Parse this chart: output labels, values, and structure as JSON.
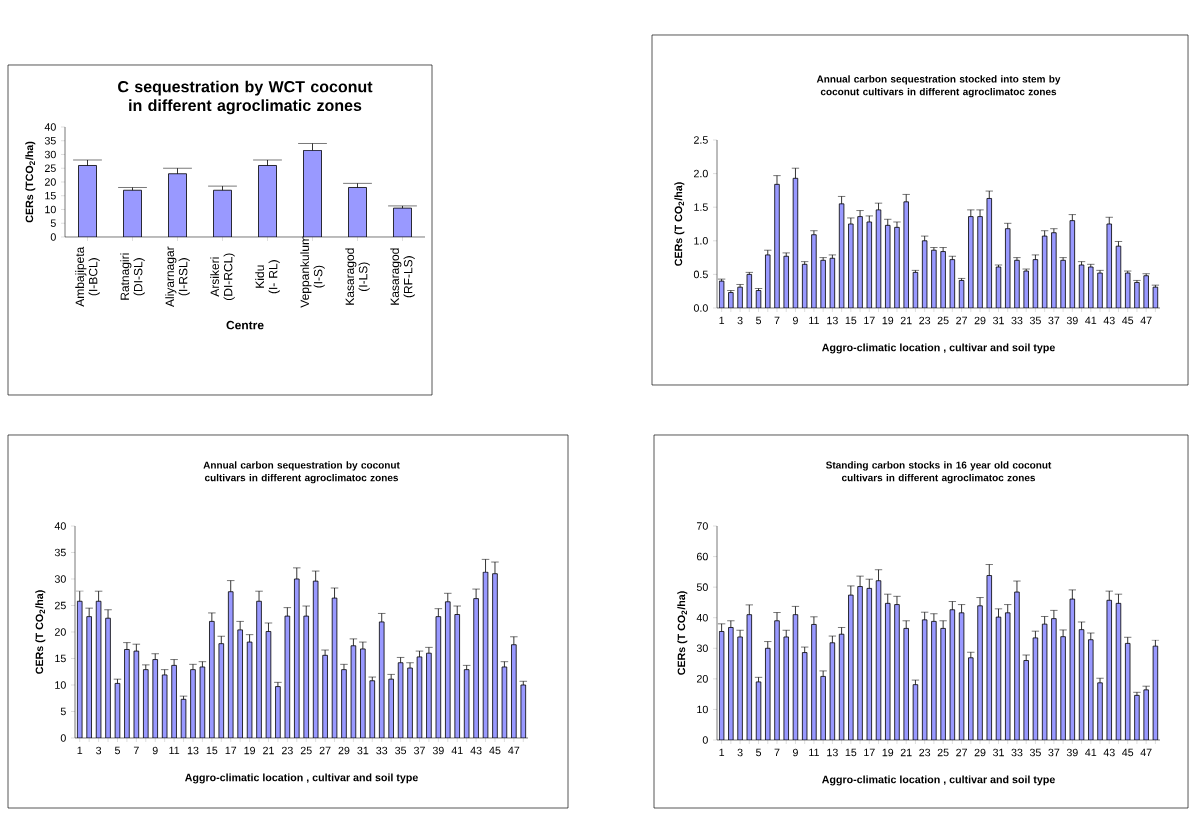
{
  "chart_data": [
    {
      "type": "bar",
      "title": "C sequestration by WCT coconut in different agroclimatic zones",
      "xlabel": "Centre",
      "ylabel": "CERs (TCO$_{2}$/ha)",
      "categories": [
        "Ambajipeta (I-BCL)",
        "Ratnagiri (DI-SL)",
        "Aliyarnagar (I-RSL)",
        "Arsikeri (DI-RCL)",
        "Kidu (I- RL)",
        "Veppankulum (I-S)",
        "Kasaragod (I-LS)",
        "Kasaragod (RF-LS)"
      ],
      "values": [
        26,
        17,
        23,
        17,
        26,
        31.5,
        18,
        10.5
      ],
      "errors": [
        2,
        1,
        2,
        1.5,
        2,
        2.5,
        1.5,
        0.8
      ],
      "color": "#9999ff",
      "ylim": [
        0,
        40
      ],
      "yticks": [
        0,
        5,
        10,
        15,
        20,
        25,
        30,
        35,
        40
      ]
    },
    {
      "type": "bar",
      "title": "Annual carbon sequestration stocked into stem by coconut cultivars in different agroclimatoc zones",
      "xlabel": "Aggro-climatic location , cultivar and soil type",
      "ylabel": "CERs (T CO$_{2}$/ha)",
      "categories": [
        "1",
        null,
        "3",
        null,
        "5",
        null,
        "7",
        null,
        "9",
        null,
        "11",
        null,
        "13",
        null,
        "15",
        null,
        "17",
        null,
        "19",
        null,
        "21",
        null,
        "23",
        null,
        "25",
        null,
        "27",
        null,
        "29",
        null,
        "31",
        null,
        "33",
        null,
        "35",
        null,
        "37",
        null,
        "39",
        null,
        "41",
        null,
        "43",
        null,
        "45",
        null,
        "47",
        null
      ],
      "values": [
        0.4,
        0.23,
        0.31,
        0.5,
        0.26,
        0.79,
        1.84,
        0.77,
        1.93,
        0.65,
        1.09,
        0.71,
        0.74,
        1.55,
        1.25,
        1.36,
        1.28,
        1.46,
        1.23,
        1.2,
        1.58,
        0.53,
        1.0,
        0.86,
        0.84,
        0.72,
        0.41,
        1.36,
        1.36,
        1.63,
        0.61,
        1.18,
        0.71,
        0.55,
        0.72,
        1.07,
        1.12,
        0.71,
        1.3,
        0.64,
        0.61,
        0.52,
        1.25,
        0.92,
        0.52,
        0.38,
        0.48,
        0.31
      ],
      "errors": [
        0.03,
        0.03,
        0.04,
        0.03,
        0.03,
        0.07,
        0.13,
        0.05,
        0.15,
        0.04,
        0.06,
        0.04,
        0.05,
        0.11,
        0.09,
        0.09,
        0.09,
        0.1,
        0.09,
        0.08,
        0.11,
        0.03,
        0.07,
        0.04,
        0.06,
        0.05,
        0.03,
        0.1,
        0.1,
        0.11,
        0.03,
        0.08,
        0.04,
        0.03,
        0.07,
        0.08,
        0.06,
        0.04,
        0.09,
        0.05,
        0.04,
        0.04,
        0.1,
        0.07,
        0.03,
        0.03,
        0.03,
        0.03
      ],
      "color": "#9999ff",
      "ylim": [
        0,
        2.5
      ],
      "yticks": [
        {
          "value": 0,
          "label": "0.0"
        },
        {
          "value": 0.5,
          "label": "0.5"
        },
        {
          "value": 1,
          "label": "1.0"
        },
        {
          "value": 1.5,
          "label": "1.5"
        },
        {
          "value": 2,
          "label": "2.0"
        },
        {
          "value": 2.5,
          "label": "2.5"
        }
      ]
    },
    {
      "type": "bar",
      "title": "Annual carbon sequestration by coconut cultivars in different agroclimatoc zones",
      "xlabel": "Aggro-climatic location , cultivar and soil type",
      "ylabel": "CERs (T CO$_{2}$/ha)",
      "categories": [
        "1",
        null,
        "3",
        null,
        "5",
        null,
        "7",
        null,
        "9",
        null,
        "11",
        null,
        "13",
        null,
        "15",
        null,
        "17",
        null,
        "19",
        null,
        "21",
        null,
        "23",
        null,
        "25",
        null,
        "27",
        null,
        "29",
        null,
        "31",
        null,
        "33",
        null,
        "35",
        null,
        "37",
        null,
        "39",
        null,
        "41",
        null,
        "43",
        null,
        "45",
        null,
        "47",
        null
      ],
      "values": [
        25.8,
        22.9,
        25.8,
        22.6,
        10.3,
        16.7,
        16.4,
        12.9,
        14.8,
        11.9,
        13.7,
        7.3,
        12.9,
        13.4,
        22.0,
        17.8,
        27.6,
        20.4,
        18.1,
        25.8,
        20.1,
        9.7,
        23.0,
        30.0,
        23.0,
        29.6,
        15.6,
        26.4,
        12.9,
        17.4,
        16.8,
        10.8,
        21.9,
        11.1,
        14.2,
        13.2,
        15.3,
        16.0,
        22.9,
        25.7,
        23.3,
        12.9,
        26.3,
        31.3,
        31.0,
        13.4,
        17.6,
        10.0
      ],
      "errors": [
        1.9,
        1.6,
        1.9,
        1.6,
        0.8,
        1.3,
        1.3,
        0.9,
        1.1,
        1.0,
        1.1,
        0.6,
        1.0,
        1.0,
        1.6,
        1.4,
        2.1,
        1.6,
        1.4,
        1.9,
        1.6,
        0.8,
        1.6,
        2.1,
        1.9,
        1.9,
        1.0,
        1.9,
        1.0,
        1.3,
        1.3,
        0.7,
        1.6,
        0.9,
        1.0,
        1.0,
        1.1,
        1.1,
        1.5,
        1.6,
        1.6,
        0.8,
        1.8,
        2.4,
        2.2,
        1.0,
        1.5,
        0.7
      ],
      "color": "#9999ff",
      "ylim": [
        0,
        40
      ],
      "yticks": [
        0,
        5,
        10,
        15,
        20,
        25,
        30,
        35,
        40
      ]
    },
    {
      "type": "bar",
      "title": "Standing carbon stocks in 16 year old coconut cultivars in different agroclimatoc zones",
      "xlabel": "Aggro-climatic location , cultivar and soil type",
      "ylabel": "CERs (T CO$_{2}$/ha)",
      "categories": [
        "1",
        null,
        "3",
        null,
        "5",
        null,
        "7",
        null,
        "9",
        null,
        "11",
        null,
        "13",
        null,
        "15",
        null,
        "17",
        null,
        "19",
        null,
        "21",
        null,
        "23",
        null,
        "25",
        null,
        "27",
        null,
        "29",
        null,
        "31",
        null,
        "33",
        null,
        "35",
        null,
        "37",
        null,
        "39",
        null,
        "41",
        null,
        "43",
        null,
        "45",
        null,
        "47",
        null
      ],
      "values": [
        35.5,
        36.8,
        33.7,
        41.0,
        19.0,
        30.0,
        39.0,
        33.7,
        41.0,
        28.6,
        37.8,
        20.8,
        31.8,
        34.6,
        47.4,
        50.2,
        49.6,
        52.1,
        44.7,
        44.3,
        36.5,
        18.1,
        39.3,
        38.8,
        36.5,
        42.6,
        41.6,
        26.9,
        43.9,
        53.8,
        40.2,
        41.6,
        48.4,
        26.0,
        33.4,
        37.9,
        39.7,
        33.8,
        46.1,
        36.1,
        32.8,
        18.7,
        45.7,
        44.7,
        31.6,
        14.6,
        16.4,
        30.7
      ],
      "errors": [
        2.5,
        2.2,
        2.2,
        3.2,
        1.5,
        2.2,
        2.7,
        2.2,
        2.7,
        1.8,
        2.5,
        1.8,
        2.2,
        2.2,
        3.0,
        3.4,
        3.0,
        3.6,
        3.0,
        2.7,
        2.5,
        1.5,
        2.5,
        2.5,
        2.5,
        2.7,
        2.7,
        1.8,
        2.7,
        3.6,
        2.7,
        2.7,
        3.6,
        1.8,
        2.2,
        2.5,
        2.7,
        2.2,
        3.0,
        2.5,
        2.2,
        1.5,
        3.0,
        3.0,
        2.0,
        1.0,
        1.2,
        2.0
      ],
      "color": "#9999ff",
      "ylim": [
        0,
        70
      ],
      "yticks": [
        0,
        10,
        20,
        30,
        40,
        50,
        60,
        70
      ]
    }
  ]
}
